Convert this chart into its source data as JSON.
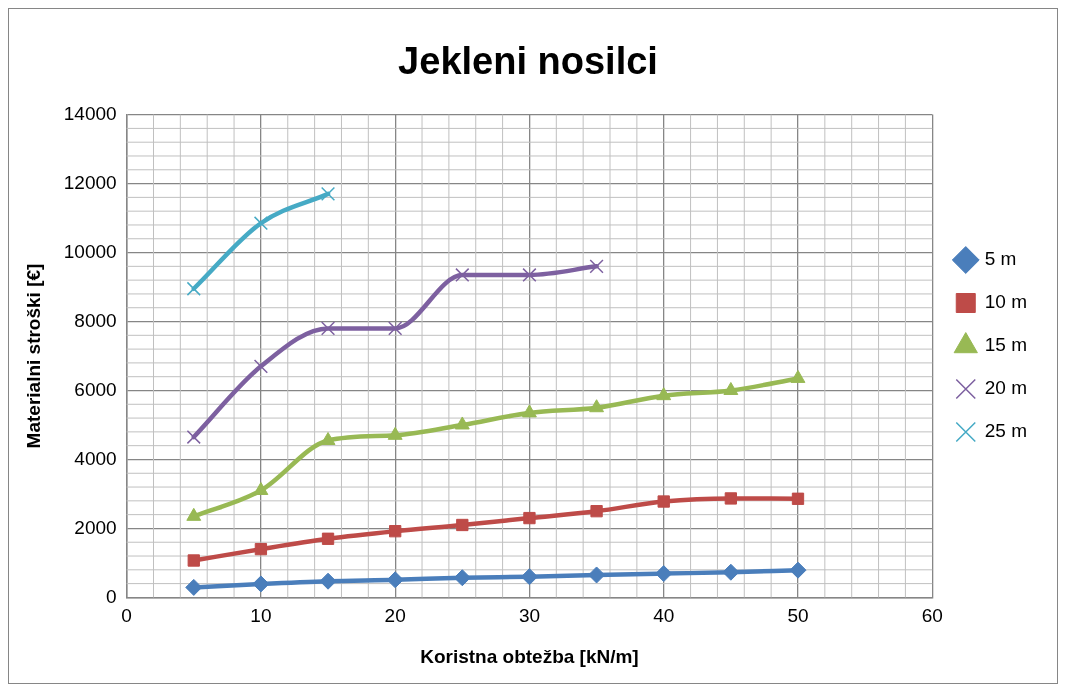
{
  "chart_data": {
    "type": "line",
    "title": "Jekleni nosilci",
    "xlabel": "Koristna obtežba [kN/m]",
    "ylabel": "Materialni stroški [€]",
    "x": [
      5,
      10,
      15,
      20,
      25,
      30,
      35,
      40,
      45,
      50
    ],
    "series": [
      {
        "name": "5 m",
        "color": "#4a7ebb",
        "marker": "diamond",
        "values": [
          290,
          390,
          470,
          510,
          570,
          600,
          650,
          690,
          730,
          790
        ]
      },
      {
        "name": "10 m",
        "color": "#be4b48",
        "marker": "square",
        "values": [
          1070,
          1400,
          1700,
          1920,
          2100,
          2300,
          2500,
          2780,
          2870,
          2860
        ]
      },
      {
        "name": "15 m",
        "color": "#98b954",
        "marker": "triangle",
        "values": [
          2350,
          3100,
          4550,
          4700,
          5000,
          5350,
          5500,
          5850,
          6000,
          6350
        ]
      },
      {
        "name": "20 m",
        "color": "#7d60a0",
        "marker": "cross",
        "values": [
          4650,
          6700,
          7800,
          7800,
          9350,
          9350,
          9600,
          null,
          null,
          null
        ]
      },
      {
        "name": "25 m",
        "color": "#46aac5",
        "marker": "cross",
        "values": [
          8950,
          10850,
          11700,
          null,
          null,
          null,
          null,
          null,
          null,
          null
        ]
      }
    ],
    "xlim": [
      0,
      60
    ],
    "xticks": [
      0,
      10,
      20,
      30,
      40,
      50,
      60
    ],
    "ylim": [
      0,
      14000
    ],
    "yticks": [
      0,
      2000,
      4000,
      6000,
      8000,
      10000,
      12000,
      14000
    ],
    "grid": true,
    "legend": "right"
  }
}
